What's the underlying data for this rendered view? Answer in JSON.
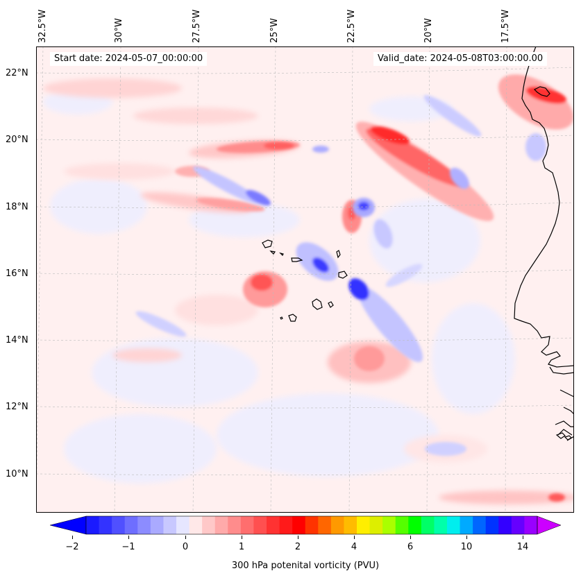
{
  "map": {
    "start_date_text": "Start date: 2024-05-07_00:00:00",
    "valid_date_text": "Valid_date: 2024-05-08T03:00:00.00",
    "longitude_labels": [
      "32.5°W",
      "30°W",
      "27.5°W",
      "25°W",
      "22.5°W",
      "20°W",
      "17.5°W"
    ],
    "latitude_labels": [
      "22°N",
      "20°N",
      "18°N",
      "16°N",
      "14°N",
      "12°N",
      "10°N"
    ],
    "background_color": "#fff0f0",
    "coastline_color": "#000000",
    "gridline_color": "#bbbbbb"
  },
  "colorbar": {
    "label": "300 hPa potenital vorticity (PVU)",
    "tick_labels": [
      "−2",
      "−1",
      "0",
      "1",
      "2",
      "4",
      "6",
      "10",
      "14"
    ],
    "under_color": "#0000ff",
    "over_color": "#cc00ff",
    "colors": [
      "#1a1aff",
      "#3333ff",
      "#5050ff",
      "#6e6eff",
      "#8c8cff",
      "#aaaaff",
      "#c8c8ff",
      "#e6e6ff",
      "#ffe8e8",
      "#ffc8c8",
      "#ffaaaa",
      "#ff8c8c",
      "#ff6e6e",
      "#ff5050",
      "#ff3232",
      "#ff1a1a",
      "#ff0000",
      "#ff3300",
      "#ff6600",
      "#ff9900",
      "#ffbb00",
      "#ffee00",
      "#ddee00",
      "#aaff00",
      "#55ff00",
      "#00ff00",
      "#00ff66",
      "#00ffaa",
      "#00eeee",
      "#00aaff",
      "#0066ff",
      "#0033ff",
      "#3300ff",
      "#6600ff",
      "#9900ff"
    ]
  }
}
